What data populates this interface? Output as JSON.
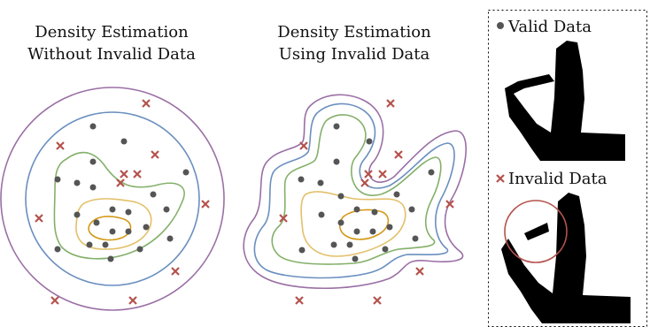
{
  "panels": [
    {
      "title_lines": [
        "Density Estimation",
        "Without Invalid Data"
      ]
    },
    {
      "title_lines": [
        "Density Estimation",
        "Using Invalid Data"
      ]
    }
  ],
  "legend": {
    "valid": "Valid Data",
    "invalid": "Invalid Data"
  }
}
